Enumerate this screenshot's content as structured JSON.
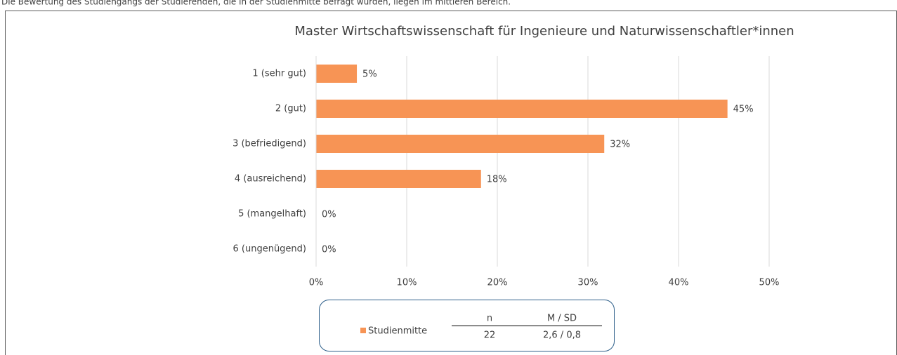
{
  "caption": "Die Bewertung des Studiengangs der Studierenden, die in der Studienmitte befragt wurden, liegen im mittleren Bereich.",
  "chart_data": {
    "type": "hbar",
    "title": "Master Wirtschaftswissenschaft für Ingenieure und Naturwissenschaftler*innen",
    "categories": [
      "1 (sehr gut)",
      "2 (gut)",
      "3 (befriedigend)",
      "4 (ausreichend)",
      "5 (mangelhaft)",
      "6 (ungenügend)"
    ],
    "series": [
      {
        "name": "Studienmitte",
        "color": "#f79455",
        "values": [
          4.5,
          45.4,
          31.8,
          18.2,
          0,
          0
        ],
        "value_labels": [
          "5%",
          "45%",
          "32%",
          "18%",
          "0%",
          "0%"
        ]
      }
    ],
    "xlim": [
      0,
      50
    ],
    "xticks": [
      {
        "value": 0,
        "label": "0%"
      },
      {
        "value": 10,
        "label": "10%"
      },
      {
        "value": 20,
        "label": "20%"
      },
      {
        "value": 30,
        "label": "30%"
      },
      {
        "value": 40,
        "label": "40%"
      },
      {
        "value": 50,
        "label": "50%"
      }
    ],
    "grid": true,
    "legend_table": {
      "columns": [
        "n",
        "M / SD"
      ],
      "cells": [
        22,
        "2,6 / 0,8"
      ]
    }
  }
}
